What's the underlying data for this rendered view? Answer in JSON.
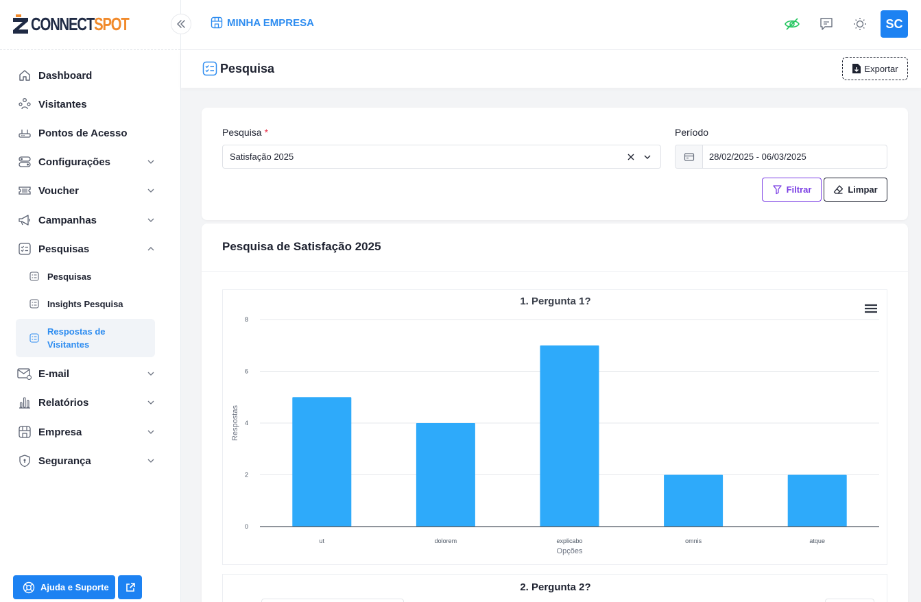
{
  "brand": {
    "name_part1": "CONNECT",
    "name_part2": "SPOT",
    "primary": "#1d82f2",
    "accent": "#f18a2b"
  },
  "topbar": {
    "company": "MINHA EMPRESA",
    "avatar": "SC",
    "icons": [
      "eye-off-icon",
      "chat-icon",
      "sun-icon"
    ]
  },
  "sidebar": {
    "items": [
      {
        "label": "Dashboard",
        "icon": "home-icon"
      },
      {
        "label": "Visitantes",
        "icon": "users-icon"
      },
      {
        "label": "Pontos de Acesso",
        "icon": "router-icon"
      },
      {
        "label": "Configurações",
        "icon": "toggle-icon"
      },
      {
        "label": "Voucher",
        "icon": "ticket-icon"
      },
      {
        "label": "Campanhas",
        "icon": "megaphone-icon"
      },
      {
        "label": "Pesquisas",
        "icon": "checklist-icon"
      },
      {
        "label": "E-mail",
        "icon": "mail-icon"
      },
      {
        "label": "Relatórios",
        "icon": "bar-chart-icon"
      },
      {
        "label": "Empresa",
        "icon": "store-icon"
      },
      {
        "label": "Segurança",
        "icon": "shield-icon"
      }
    ],
    "sub_items": [
      {
        "label": "Pesquisas"
      },
      {
        "label": "Insights Pesquisa"
      },
      {
        "label": "Respostas de Visitantes",
        "active": true
      }
    ],
    "help_label": "Ajuda e Suporte"
  },
  "page": {
    "title": "Pesquisa",
    "export_label": "Exportar"
  },
  "filters": {
    "survey_label": "Pesquisa",
    "required_mark": "*",
    "survey_value": "Satisfação 2025",
    "period_label": "Período",
    "period_value": "28/02/2025 - 06/03/2025",
    "filter_btn": "Filtrar",
    "clear_btn": "Limpar"
  },
  "survey": {
    "title": "Pesquisa de Satisfação 2025"
  },
  "chart_data": [
    {
      "type": "bar",
      "title": "1. Pergunta 1?",
      "categories": [
        "ut",
        "dolorem",
        "explicabo",
        "omnis",
        "atque"
      ],
      "values": [
        5,
        4,
        7,
        2,
        2
      ],
      "xlabel": "Opções",
      "ylabel": "Respostas",
      "ylim": [
        0,
        8
      ],
      "yticks": [
        0,
        2,
        4,
        6,
        8
      ],
      "color": "#2eaafa",
      "grid": true
    },
    {
      "type": "bar",
      "title": "2. Pergunta 2?"
    }
  ]
}
